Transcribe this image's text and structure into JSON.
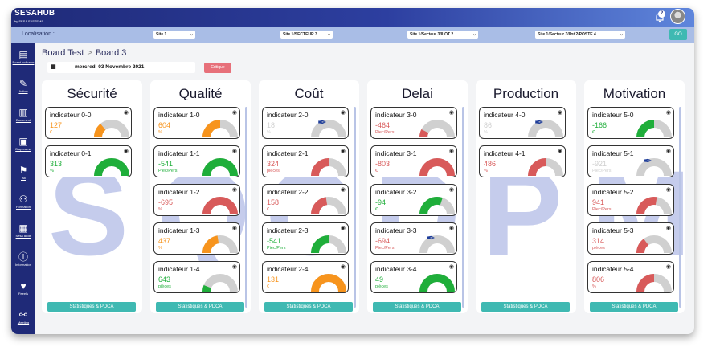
{
  "brand": {
    "name": "SESAHUB",
    "sub": "by SESA SYSTEMS"
  },
  "notifications": {
    "count": "2"
  },
  "filters": {
    "label": "Localisation :",
    "selects": [
      "Site 1",
      "Site 1/SECTEUR 3",
      "Site 1/Secteur 3/ILOT 2",
      "Site 1/Secteur 3/Ilot 2/POSTE 4"
    ],
    "go": "GO"
  },
  "sidebar": [
    {
      "label": "Board indicator",
      "icon": "board-icon"
    },
    {
      "label": "Action",
      "icon": "action-icon"
    },
    {
      "label": "Document",
      "icon": "document-icon"
    },
    {
      "label": "Diaporama",
      "icon": "diaporama-icon"
    },
    {
      "label": "Tsk",
      "icon": "task-icon"
    },
    {
      "label": "Formation",
      "icon": "formation-icon"
    },
    {
      "label": "Sesa audit",
      "icon": "audit-icon"
    },
    {
      "label": "Information",
      "icon": "info-icon"
    },
    {
      "label": "Feeels",
      "icon": "heart-icon"
    },
    {
      "label": "Meeting",
      "icon": "meeting-icon"
    }
  ],
  "breadcrumb": {
    "parent": "Board Test",
    "sep": ">",
    "current": "Board 3"
  },
  "date": "mercredi 03 Novembre 2021",
  "critique": "Critique",
  "stats_label": "Statistiques & PDCA",
  "colors": {
    "green": "#1fae3a",
    "orange": "#f7941d",
    "red": "#d85a5a",
    "grey": "#cfcfcf",
    "teal": "#3fb9b2",
    "navy": "#1f2a78"
  },
  "columns": [
    {
      "title": "Sécurité",
      "letter": "S",
      "cards": [
        {
          "name": "indicateur 0-0",
          "value": "127",
          "unit": "€",
          "color": "#f7941d",
          "fill": 0.28,
          "pen": false
        },
        {
          "name": "indicateur 0-1",
          "value": "313",
          "unit": "%",
          "color": "#1fae3a",
          "fill": 1,
          "pen": false
        }
      ]
    },
    {
      "title": "Qualité",
      "letter": "Q",
      "cards": [
        {
          "name": "indicateur 1-0",
          "value": "604",
          "unit": "%",
          "color": "#f7941d",
          "fill": 0.5,
          "pen": false
        },
        {
          "name": "indicateur 1-1",
          "value": "-541",
          "unit": "Piec/Pers",
          "color": "#1fae3a",
          "fill": 1,
          "pen": false
        },
        {
          "name": "indicateur 1-2",
          "value": "-695",
          "unit": "%",
          "color": "#d85a5a",
          "fill": 1,
          "pen": false
        },
        {
          "name": "indicateur 1-3",
          "value": "437",
          "unit": "%",
          "color": "#f7941d",
          "fill": 0.45,
          "pen": false
        },
        {
          "name": "indicateur 1-4",
          "value": "643",
          "unit": "pièces",
          "color": "#1fae3a",
          "fill": 0.12,
          "pen": false
        }
      ]
    },
    {
      "title": "Coût",
      "letter": "C",
      "cards": [
        {
          "name": "indicateur 2-0",
          "value": "18",
          "unit": "%",
          "color": "#cfcfcf",
          "fill": 0,
          "pen": true
        },
        {
          "name": "indicateur 2-1",
          "value": "324",
          "unit": "pièces",
          "color": "#d85a5a",
          "fill": 0.5,
          "pen": false
        },
        {
          "name": "indicateur 2-2",
          "value": "158",
          "unit": "€",
          "color": "#d85a5a",
          "fill": 0.45,
          "pen": false
        },
        {
          "name": "indicateur 2-3",
          "value": "-541",
          "unit": "Piec/Pers",
          "color": "#1fae3a",
          "fill": 0.5,
          "pen": false
        },
        {
          "name": "indicateur 2-4",
          "value": "131",
          "unit": "€",
          "color": "#f7941d",
          "fill": 1,
          "pen": false
        }
      ]
    },
    {
      "title": "Delai",
      "letter": "D",
      "cards": [
        {
          "name": "indicateur 3-0",
          "value": "-464",
          "unit": "Piec/Pers",
          "color": "#d85a5a",
          "fill": 0.15,
          "pen": false
        },
        {
          "name": "indicateur 3-1",
          "value": "-803",
          "unit": "€",
          "color": "#d85a5a",
          "fill": 1,
          "pen": false
        },
        {
          "name": "indicateur 3-2",
          "value": "-94",
          "unit": "€",
          "color": "#1fae3a",
          "fill": 0.6,
          "pen": false
        },
        {
          "name": "indicateur 3-3",
          "value": "-694",
          "unit": "Piec/Pers",
          "color": "#d85a5a",
          "fill": 0,
          "pen": true
        },
        {
          "name": "indicateur 3-4",
          "value": "49",
          "unit": "pièces",
          "color": "#1fae3a",
          "fill": 1,
          "pen": false
        }
      ]
    },
    {
      "title": "Production",
      "letter": "P",
      "cards": [
        {
          "name": "indicateur 4-0",
          "value": "86",
          "unit": "%",
          "color": "#cfcfcf",
          "fill": 0,
          "pen": true
        },
        {
          "name": "indicateur 4-1",
          "value": "486",
          "unit": "%",
          "color": "#d85a5a",
          "fill": 0.5,
          "pen": false
        }
      ]
    },
    {
      "title": "Motivation",
      "letter": "M",
      "cards": [
        {
          "name": "indicateur 5-0",
          "value": "-166",
          "unit": "€",
          "color": "#1fae3a",
          "fill": 0.5,
          "pen": false
        },
        {
          "name": "indicateur 5-1",
          "value": "-921",
          "unit": "Piec/Pers",
          "color": "#cfcfcf",
          "fill": 0,
          "pen": true
        },
        {
          "name": "indicateur 5-2",
          "value": "941",
          "unit": "Piec/Pers",
          "color": "#d85a5a",
          "fill": 0.55,
          "pen": false
        },
        {
          "name": "indicateur 5-3",
          "value": "314",
          "unit": "pièces",
          "color": "#d85a5a",
          "fill": 0.3,
          "pen": false
        },
        {
          "name": "indicateur 5-4",
          "value": "806",
          "unit": "%",
          "color": "#d85a5a",
          "fill": 0.5,
          "pen": false
        }
      ]
    }
  ]
}
